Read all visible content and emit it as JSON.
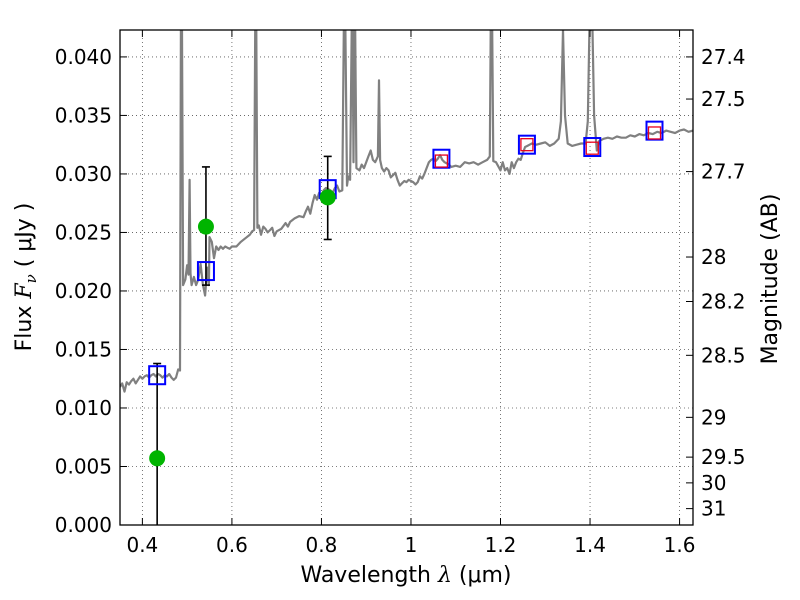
{
  "chart_data": {
    "type": "scatter",
    "title": "",
    "xlabel": {
      "prefix": "Wavelength  ",
      "symbol": "λ",
      "unit": " (μm)"
    },
    "ylabel": {
      "prefix": "Flux  ",
      "symbol": "F",
      "subscript": "ν",
      "unit": "  ( μJy )"
    },
    "ylabel_right": "Magnitude (AB)",
    "xlim": [
      0.35,
      1.63
    ],
    "ylim": [
      0.0,
      0.0423
    ],
    "grid": true,
    "grid_style": "dotted",
    "xticks": [
      {
        "value": 0.4,
        "label": "0.4"
      },
      {
        "value": 0.6,
        "label": "0.6"
      },
      {
        "value": 0.8,
        "label": "0.8"
      },
      {
        "value": 1.0,
        "label": "1"
      },
      {
        "value": 1.2,
        "label": "1.2"
      },
      {
        "value": 1.4,
        "label": "1.4"
      },
      {
        "value": 1.6,
        "label": "1.6"
      }
    ],
    "yticks": [
      {
        "value": 0.0,
        "label": "0.000"
      },
      {
        "value": 0.005,
        "label": "0.005"
      },
      {
        "value": 0.01,
        "label": "0.010"
      },
      {
        "value": 0.015,
        "label": "0.015"
      },
      {
        "value": 0.02,
        "label": "0.020"
      },
      {
        "value": 0.025,
        "label": "0.025"
      },
      {
        "value": 0.03,
        "label": "0.030"
      },
      {
        "value": 0.035,
        "label": "0.035"
      },
      {
        "value": 0.04,
        "label": "0.040"
      }
    ],
    "right_ticks": [
      {
        "flux": 0.04,
        "label": "27.4"
      },
      {
        "flux": 0.0364,
        "label": "27.5"
      },
      {
        "flux": 0.0302,
        "label": "27.7"
      },
      {
        "flux": 0.0229,
        "label": "28"
      },
      {
        "flux": 0.0191,
        "label": "28.2"
      },
      {
        "flux": 0.0145,
        "label": "28.5"
      },
      {
        "flux": 0.0092,
        "label": "29"
      },
      {
        "flux": 0.0058,
        "label": "29.5"
      },
      {
        "flux": 0.0036,
        "label": "30"
      },
      {
        "flux": 0.0014,
        "label": "31"
      }
    ],
    "colors": {
      "spectrum": "#808080",
      "observed": "#00b400",
      "model_box": "#0000ff",
      "inner_box": "#e8001c",
      "errorbar": "#000000"
    },
    "series": [
      {
        "kind": "spectrum",
        "points": [
          [
            0.35,
            0.0118
          ],
          [
            0.355,
            0.0121
          ],
          [
            0.36,
            0.0114
          ],
          [
            0.365,
            0.0122
          ],
          [
            0.37,
            0.012
          ],
          [
            0.375,
            0.0123
          ],
          [
            0.38,
            0.0125
          ],
          [
            0.385,
            0.0121
          ],
          [
            0.39,
            0.0124
          ],
          [
            0.395,
            0.0127
          ],
          [
            0.4,
            0.0125
          ],
          [
            0.405,
            0.0127
          ],
          [
            0.41,
            0.0128
          ],
          [
            0.415,
            0.0126
          ],
          [
            0.42,
            0.0128
          ],
          [
            0.425,
            0.0129
          ],
          [
            0.43,
            0.0127
          ],
          [
            0.435,
            0.0129
          ],
          [
            0.44,
            0.0128
          ],
          [
            0.445,
            0.0126
          ],
          [
            0.45,
            0.0128
          ],
          [
            0.455,
            0.0127
          ],
          [
            0.46,
            0.0129
          ],
          [
            0.465,
            0.0126
          ],
          [
            0.47,
            0.0124
          ],
          [
            0.475,
            0.0126
          ],
          [
            0.48,
            0.0133
          ],
          [
            0.484,
            0.0132
          ],
          [
            0.486,
            0.0423
          ],
          [
            0.4885,
            0.0423
          ],
          [
            0.491,
            0.0205
          ],
          [
            0.496,
            0.021
          ],
          [
            0.5,
            0.0222
          ],
          [
            0.503,
            0.0214
          ],
          [
            0.5055,
            0.0295
          ],
          [
            0.5075,
            0.0215
          ],
          [
            0.51,
            0.0205
          ],
          [
            0.515,
            0.0212
          ],
          [
            0.52,
            0.0205
          ],
          [
            0.525,
            0.021
          ],
          [
            0.53,
            0.0223
          ],
          [
            0.535,
            0.0206
          ],
          [
            0.54,
            0.0196
          ],
          [
            0.545,
            0.022
          ],
          [
            0.5485,
            0.0205
          ],
          [
            0.55,
            0.0246
          ],
          [
            0.555,
            0.0242
          ],
          [
            0.56,
            0.0228
          ],
          [
            0.565,
            0.0238
          ],
          [
            0.57,
            0.0235
          ],
          [
            0.575,
            0.0238
          ],
          [
            0.58,
            0.0236
          ],
          [
            0.585,
            0.0238
          ],
          [
            0.59,
            0.0237
          ],
          [
            0.595,
            0.0236
          ],
          [
            0.6,
            0.0238
          ],
          [
            0.61,
            0.0238
          ],
          [
            0.62,
            0.0242
          ],
          [
            0.63,
            0.0245
          ],
          [
            0.64,
            0.0248
          ],
          [
            0.645,
            0.0251
          ],
          [
            0.6495,
            0.0252
          ],
          [
            0.652,
            0.0423
          ],
          [
            0.6545,
            0.0423
          ],
          [
            0.657,
            0.0254
          ],
          [
            0.66,
            0.0256
          ],
          [
            0.665,
            0.0248
          ],
          [
            0.67,
            0.0255
          ],
          [
            0.675,
            0.0253
          ],
          [
            0.68,
            0.025
          ],
          [
            0.685,
            0.0252
          ],
          [
            0.69,
            0.0254
          ],
          [
            0.695,
            0.0247
          ],
          [
            0.7,
            0.0251
          ],
          [
            0.71,
            0.0253
          ],
          [
            0.72,
            0.0258
          ],
          [
            0.725,
            0.0255
          ],
          [
            0.73,
            0.0259
          ],
          [
            0.74,
            0.0262
          ],
          [
            0.75,
            0.0264
          ],
          [
            0.76,
            0.0263
          ],
          [
            0.765,
            0.0268
          ],
          [
            0.77,
            0.0272
          ],
          [
            0.775,
            0.0266
          ],
          [
            0.78,
            0.0275
          ],
          [
            0.785,
            0.0282
          ],
          [
            0.79,
            0.0278
          ],
          [
            0.795,
            0.0284
          ],
          [
            0.8,
            0.0282
          ],
          [
            0.805,
            0.0286
          ],
          [
            0.81,
            0.0288
          ],
          [
            0.815,
            0.0287
          ],
          [
            0.82,
            0.0286
          ],
          [
            0.825,
            0.0284
          ],
          [
            0.83,
            0.0288
          ],
          [
            0.835,
            0.029
          ],
          [
            0.84,
            0.0285
          ],
          [
            0.8465,
            0.0286
          ],
          [
            0.85,
            0.0423
          ],
          [
            0.8535,
            0.0423
          ],
          [
            0.857,
            0.029
          ],
          [
            0.86,
            0.0298
          ],
          [
            0.864,
            0.0295
          ],
          [
            0.8675,
            0.0423
          ],
          [
            0.8695,
            0.0423
          ],
          [
            0.8715,
            0.031
          ],
          [
            0.8735,
            0.0423
          ],
          [
            0.8755,
            0.0423
          ],
          [
            0.878,
            0.0305
          ],
          [
            0.885,
            0.0303
          ],
          [
            0.89,
            0.0308
          ],
          [
            0.895,
            0.0305
          ],
          [
            0.9,
            0.031
          ],
          [
            0.905,
            0.0315
          ],
          [
            0.91,
            0.032
          ],
          [
            0.915,
            0.0312
          ],
          [
            0.92,
            0.031
          ],
          [
            0.926,
            0.0315
          ],
          [
            0.9285,
            0.038
          ],
          [
            0.931,
            0.0312
          ],
          [
            0.935,
            0.0305
          ],
          [
            0.94,
            0.0302
          ],
          [
            0.945,
            0.0305
          ],
          [
            0.95,
            0.0303
          ],
          [
            0.955,
            0.0297
          ],
          [
            0.96,
            0.0299
          ],
          [
            0.965,
            0.0301
          ],
          [
            0.97,
            0.0295
          ],
          [
            0.975,
            0.029
          ],
          [
            0.98,
            0.0292
          ],
          [
            0.985,
            0.0294
          ],
          [
            0.99,
            0.0293
          ],
          [
            0.995,
            0.0295
          ],
          [
            1.0,
            0.0294
          ],
          [
            1.005,
            0.0293
          ],
          [
            1.01,
            0.0291
          ],
          [
            1.015,
            0.0293
          ],
          [
            1.02,
            0.0298
          ],
          [
            1.025,
            0.0296
          ],
          [
            1.03,
            0.03
          ],
          [
            1.035,
            0.0305
          ],
          [
            1.04,
            0.031
          ],
          [
            1.045,
            0.0312
          ],
          [
            1.05,
            0.0313
          ],
          [
            1.055,
            0.0311
          ],
          [
            1.06,
            0.0313
          ],
          [
            1.065,
            0.0316
          ],
          [
            1.07,
            0.0312
          ],
          [
            1.075,
            0.031
          ],
          [
            1.08,
            0.0309
          ],
          [
            1.085,
            0.0308
          ],
          [
            1.09,
            0.0306
          ],
          [
            1.1,
            0.0307
          ],
          [
            1.11,
            0.0306
          ],
          [
            1.12,
            0.031
          ],
          [
            1.13,
            0.0309
          ],
          [
            1.14,
            0.031
          ],
          [
            1.15,
            0.0308
          ],
          [
            1.16,
            0.031
          ],
          [
            1.17,
            0.0312
          ],
          [
            1.176,
            0.0315
          ],
          [
            1.178,
            0.0423
          ],
          [
            1.1815,
            0.0423
          ],
          [
            1.184,
            0.0311
          ],
          [
            1.19,
            0.031
          ],
          [
            1.2,
            0.0303
          ],
          [
            1.205,
            0.031
          ],
          [
            1.21,
            0.0303
          ],
          [
            1.215,
            0.0305
          ],
          [
            1.22,
            0.03
          ],
          [
            1.225,
            0.031
          ],
          [
            1.23,
            0.0305
          ],
          [
            1.235,
            0.031
          ],
          [
            1.24,
            0.0313
          ],
          [
            1.245,
            0.0312
          ],
          [
            1.25,
            0.0318
          ],
          [
            1.255,
            0.0323
          ],
          [
            1.26,
            0.0324
          ],
          [
            1.265,
            0.0325
          ],
          [
            1.27,
            0.0326
          ],
          [
            1.28,
            0.0325
          ],
          [
            1.29,
            0.0326
          ],
          [
            1.3,
            0.0327
          ],
          [
            1.31,
            0.0324
          ],
          [
            1.32,
            0.0326
          ],
          [
            1.33,
            0.033
          ],
          [
            1.335,
            0.0345
          ],
          [
            1.3395,
            0.0423
          ],
          [
            1.344,
            0.035
          ],
          [
            1.35,
            0.0326
          ],
          [
            1.36,
            0.0324
          ],
          [
            1.37,
            0.0325
          ],
          [
            1.38,
            0.0326
          ],
          [
            1.39,
            0.0326
          ],
          [
            1.395,
            0.0345
          ],
          [
            1.3985,
            0.0423
          ],
          [
            1.4055,
            0.0423
          ],
          [
            1.409,
            0.035
          ],
          [
            1.415,
            0.032
          ],
          [
            1.42,
            0.0328
          ],
          [
            1.43,
            0.033
          ],
          [
            1.44,
            0.0331
          ],
          [
            1.45,
            0.033
          ],
          [
            1.46,
            0.0332
          ],
          [
            1.47,
            0.0331
          ],
          [
            1.48,
            0.0331
          ],
          [
            1.49,
            0.0333
          ],
          [
            1.5,
            0.0332
          ],
          [
            1.51,
            0.0334
          ],
          [
            1.52,
            0.0333
          ],
          [
            1.53,
            0.0335
          ],
          [
            1.54,
            0.0334
          ],
          [
            1.55,
            0.0336
          ],
          [
            1.56,
            0.0335
          ],
          [
            1.57,
            0.0337
          ],
          [
            1.58,
            0.0336
          ],
          [
            1.59,
            0.0335
          ],
          [
            1.6,
            0.0337
          ],
          [
            1.61,
            0.0338
          ],
          [
            1.62,
            0.0336
          ],
          [
            1.63,
            0.0337
          ]
        ]
      },
      {
        "kind": "observed",
        "points": [
          {
            "x": 0.433,
            "y": 0.0057,
            "err_low": 0.0057,
            "err_high": 0.0081
          },
          {
            "x": 0.542,
            "y": 0.0255,
            "err_low": 0.005,
            "err_high": 0.0051
          },
          {
            "x": 0.814,
            "y": 0.028,
            "err_low": 0.0036,
            "err_high": 0.0035
          }
        ]
      },
      {
        "kind": "model",
        "points": [
          {
            "x": 0.433,
            "y": 0.0128
          },
          {
            "x": 0.542,
            "y": 0.0217
          },
          {
            "x": 0.814,
            "y": 0.0287
          },
          {
            "x": 1.068,
            "y": 0.0313
          },
          {
            "x": 1.259,
            "y": 0.0325
          },
          {
            "x": 1.405,
            "y": 0.0323
          },
          {
            "x": 1.544,
            "y": 0.0337
          }
        ]
      },
      {
        "kind": "model_inner",
        "points": [
          {
            "x": 1.068,
            "y": 0.0311
          },
          {
            "x": 1.259,
            "y": 0.0325
          },
          {
            "x": 1.405,
            "y": 0.0322
          },
          {
            "x": 1.544,
            "y": 0.0335
          }
        ]
      }
    ]
  }
}
